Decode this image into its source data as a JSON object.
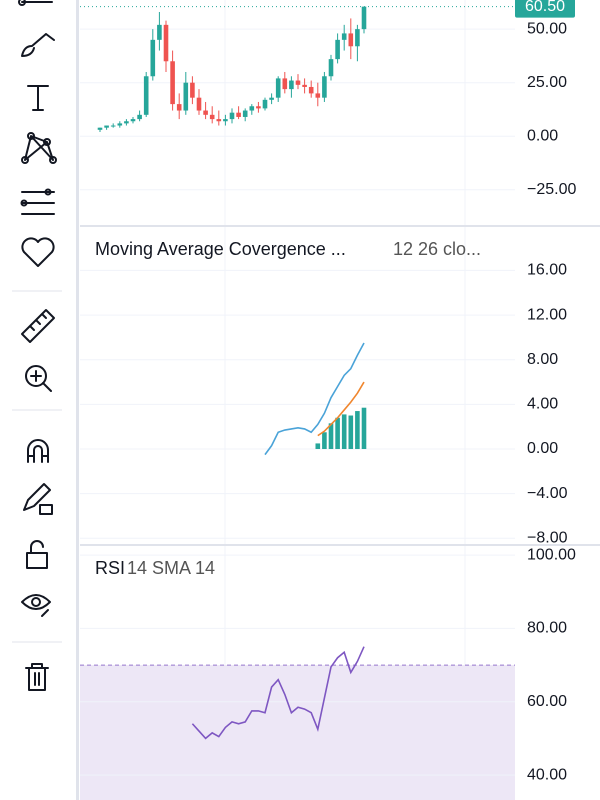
{
  "chart_data": [
    {
      "type": "candlestick",
      "open": [
        3,
        4,
        5,
        5,
        6,
        7,
        8,
        10,
        28,
        45,
        52,
        35,
        15,
        12,
        25,
        18,
        12,
        10,
        8,
        7,
        8,
        11,
        9,
        12,
        14,
        13,
        17,
        18,
        27,
        22,
        26,
        24,
        23,
        20,
        18,
        28,
        36,
        45,
        48,
        42,
        50
      ],
      "high": [
        4,
        5,
        6,
        7,
        8,
        9,
        12,
        30,
        50,
        58,
        54,
        40,
        20,
        30,
        28,
        22,
        16,
        14,
        12,
        10,
        13,
        14,
        13,
        15,
        16,
        18,
        20,
        28,
        30,
        28,
        29,
        27,
        26,
        25,
        30,
        38,
        48,
        52,
        55,
        52,
        60.5
      ],
      "low": [
        2,
        3,
        4,
        4,
        5,
        6,
        7,
        9,
        26,
        40,
        30,
        12,
        8,
        10,
        15,
        10,
        8,
        6,
        5,
        5,
        6,
        8,
        7,
        10,
        11,
        12,
        15,
        16,
        20,
        18,
        22,
        20,
        18,
        14,
        16,
        26,
        34,
        40,
        36,
        35,
        48
      ],
      "close": [
        4,
        5,
        5,
        6,
        7,
        8,
        10,
        28,
        45,
        52,
        35,
        15,
        12,
        25,
        18,
        12,
        10,
        8,
        7,
        8,
        11,
        9,
        12,
        14,
        13,
        17,
        18,
        27,
        22,
        26,
        24,
        23,
        20,
        18,
        28,
        36,
        45,
        48,
        42,
        50,
        60.5
      ],
      "up_color": "#26a69a",
      "down_color": "#ef5350",
      "ylim": [
        -41.9,
        63.6
      ],
      "yticks": [
        {
          "value": 50,
          "label": "50.00"
        },
        {
          "value": 25,
          "label": "25.00"
        },
        {
          "value": 0,
          "label": "0.00"
        },
        {
          "value": -25,
          "label": "−25.00"
        }
      ],
      "last_price": {
        "value": 60.5,
        "label": "60.50"
      },
      "grid": true
    },
    {
      "type": "macd",
      "title": "Moving Average Covergence ...",
      "subtitle": "12 26 clo...",
      "series": [
        {
          "color": "#4aa3d8",
          "values": [
            null,
            null,
            null,
            null,
            null,
            null,
            null,
            null,
            null,
            null,
            null,
            null,
            null,
            null,
            null,
            null,
            null,
            null,
            null,
            null,
            null,
            null,
            null,
            null,
            null,
            -0.5,
            0.3,
            1.5,
            1.7,
            1.8,
            1.9,
            1.8,
            1.5,
            2.2,
            3.2,
            4.6,
            5.6,
            6.6,
            7.2,
            8.4,
            9.5
          ]
        },
        {
          "color": "#f0862e",
          "values": [
            null,
            null,
            null,
            null,
            null,
            null,
            null,
            null,
            null,
            null,
            null,
            null,
            null,
            null,
            null,
            null,
            null,
            null,
            null,
            null,
            null,
            null,
            null,
            null,
            null,
            null,
            null,
            null,
            null,
            null,
            null,
            null,
            null,
            1.2,
            1.6,
            2.2,
            2.8,
            3.5,
            4.2,
            5.0,
            6.0
          ]
        }
      ],
      "histogram": {
        "color": "#26a69a",
        "values": [
          null,
          null,
          null,
          null,
          null,
          null,
          null,
          null,
          null,
          null,
          null,
          null,
          null,
          null,
          null,
          null,
          null,
          null,
          null,
          null,
          null,
          null,
          null,
          null,
          null,
          null,
          null,
          null,
          null,
          null,
          null,
          null,
          null,
          0.5,
          1.5,
          2.3,
          2.8,
          3.1,
          3.0,
          3.4,
          3.7
        ]
      },
      "ylim": [
        -8.6,
        19.8
      ],
      "yticks": [
        {
          "value": 16,
          "label": "16.00"
        },
        {
          "value": 12,
          "label": "12.00"
        },
        {
          "value": 8,
          "label": "8.00"
        },
        {
          "value": 4,
          "label": "4.00"
        },
        {
          "value": 0,
          "label": "0.00"
        },
        {
          "value": -4,
          "label": "−4.00"
        },
        {
          "value": -8,
          "label": "−8.00"
        }
      ],
      "grid": true
    },
    {
      "type": "line",
      "title": "RSI",
      "subtitle": "14 SMA 14",
      "series": [
        {
          "color": "#7e57c2",
          "values": [
            null,
            null,
            null,
            null,
            null,
            null,
            null,
            null,
            null,
            null,
            null,
            null,
            null,
            null,
            54,
            52,
            50,
            51.5,
            50.5,
            53,
            54.5,
            54,
            54.5,
            57.5,
            57.5,
            57,
            64,
            66,
            62,
            57,
            58.5,
            58,
            57,
            52.5,
            61,
            69.5,
            72,
            73.5,
            68,
            71,
            75
          ]
        }
      ],
      "overbought": 70,
      "band_color": "#ede7f6",
      "ylim": [
        33.2,
        102.2
      ],
      "yticks": [
        {
          "value": 100,
          "label": "100.00"
        },
        {
          "value": 80,
          "label": "80.00"
        },
        {
          "value": 60,
          "label": "60.00"
        },
        {
          "value": 40,
          "label": "40.00"
        }
      ],
      "grid": true
    }
  ]
}
